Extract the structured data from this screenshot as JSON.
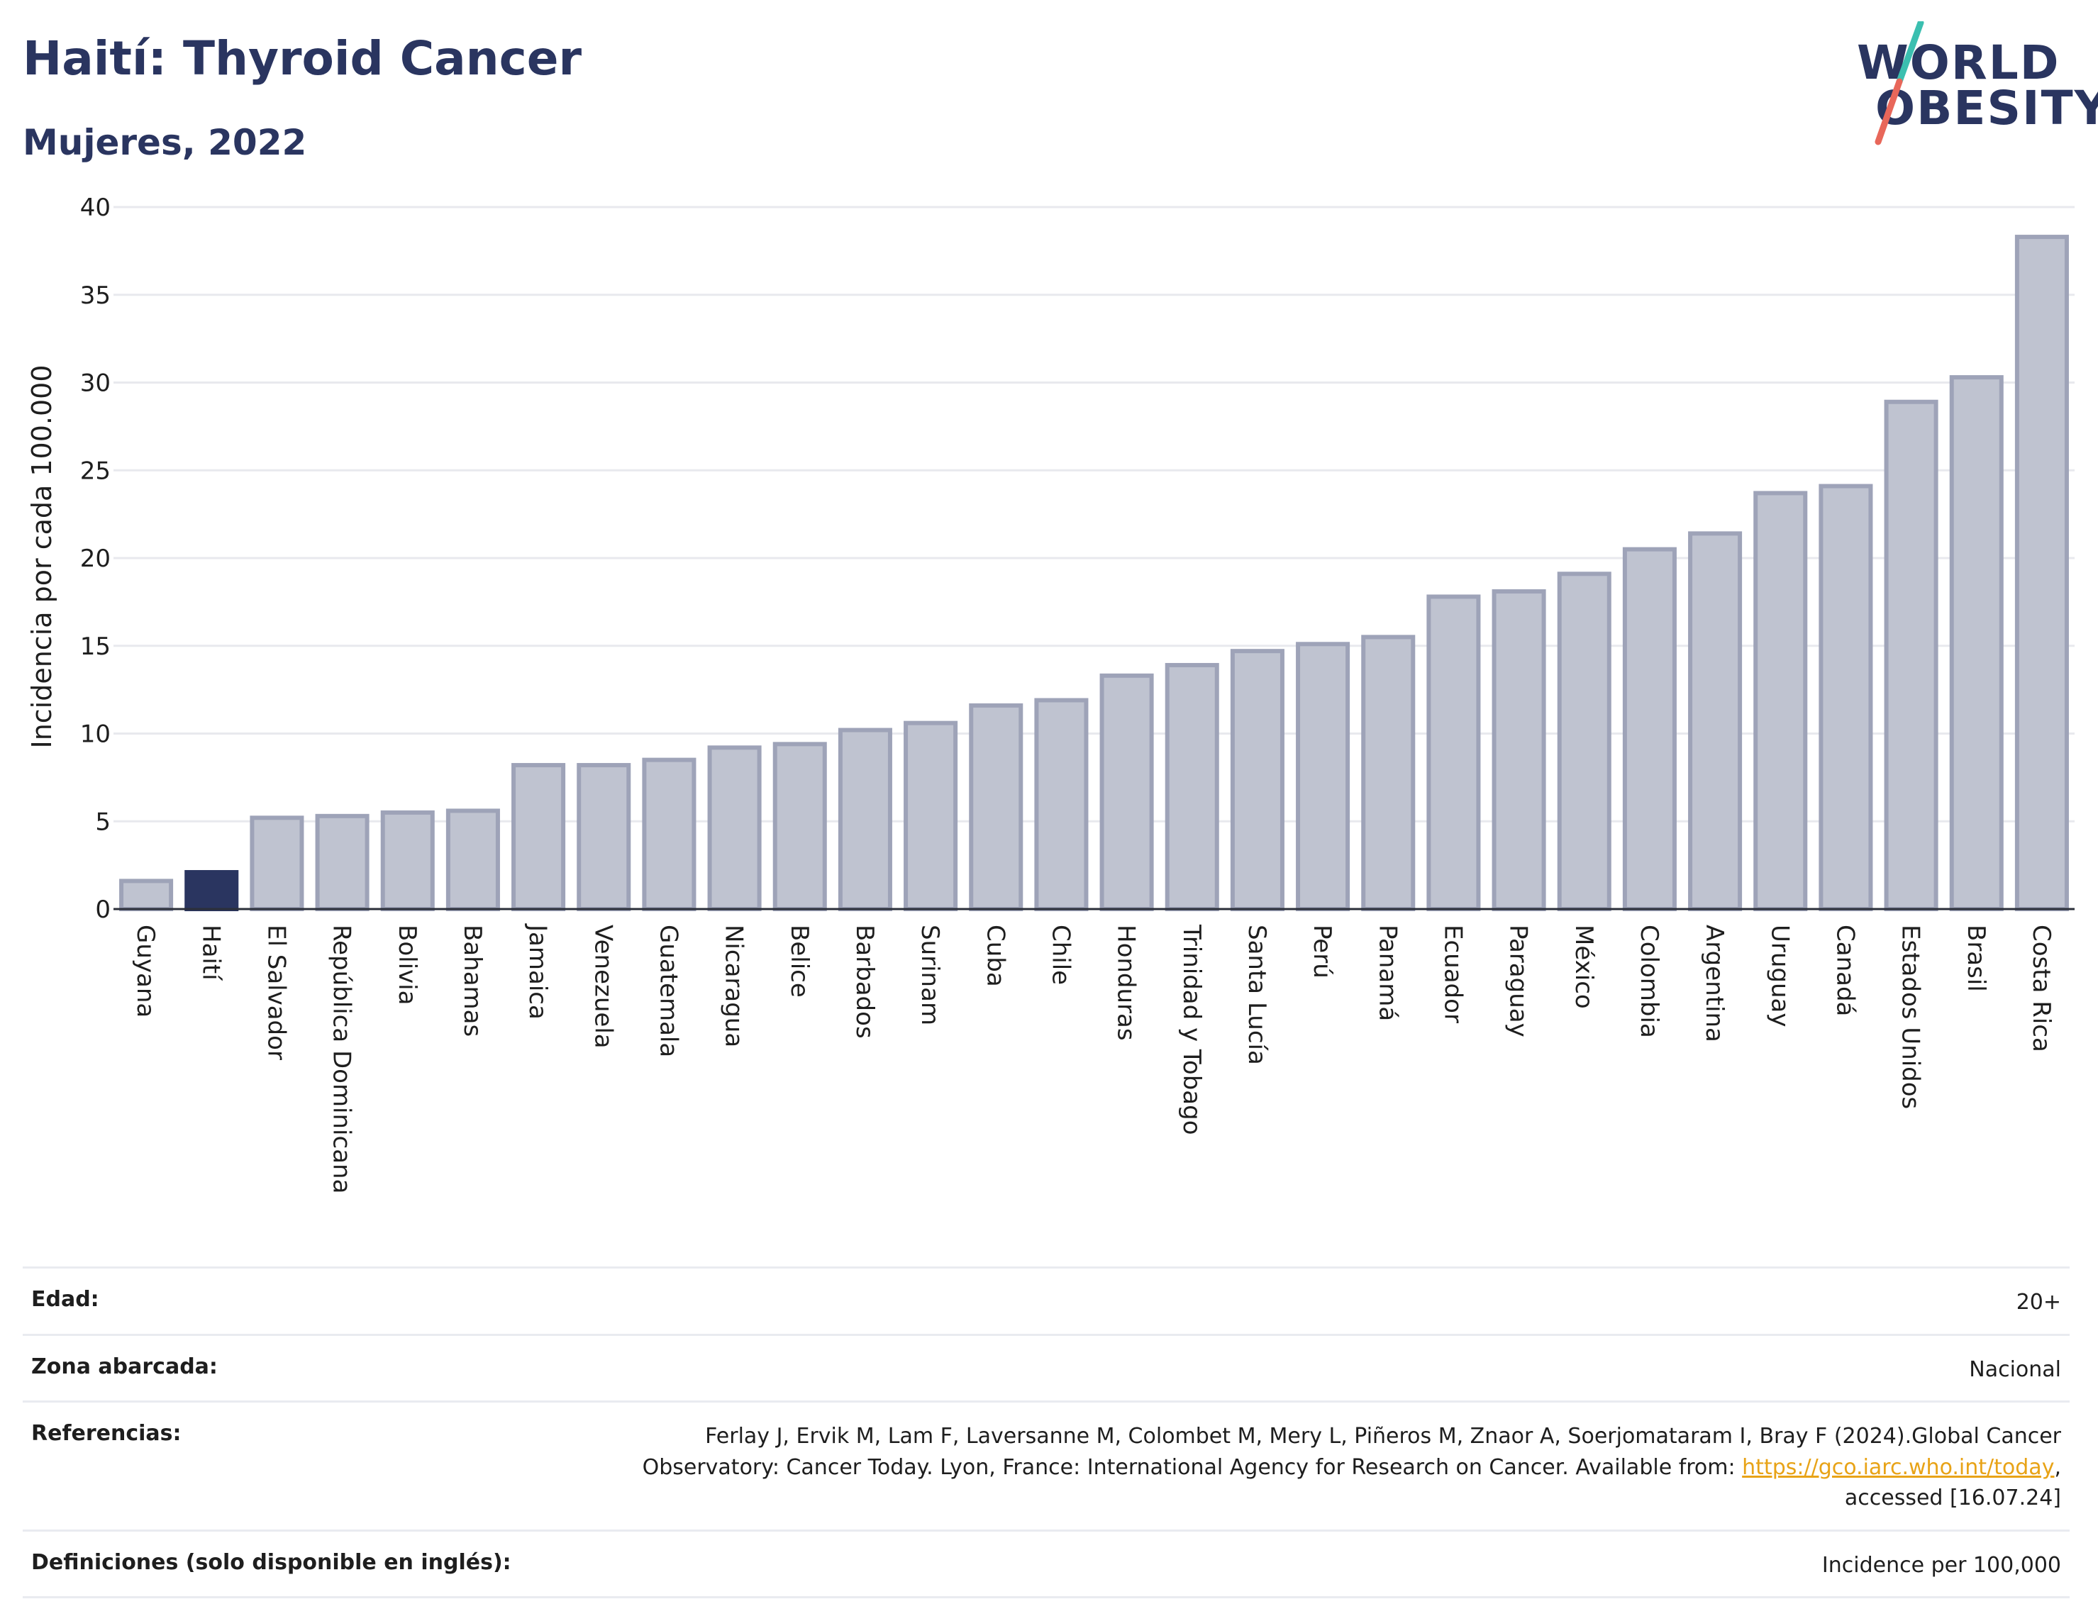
{
  "header": {
    "title": "Haití: Thyroid Cancer",
    "subtitle": "Mujeres, 2022"
  },
  "logo": {
    "line1": "WORLD",
    "line2": "OBESITY",
    "colors": {
      "text": "#2a3560",
      "slash_top": "#3bbfb0",
      "slash_bottom": "#e8675a"
    }
  },
  "chart_data": {
    "type": "bar",
    "ylabel": "Incidencia por cada 100.000",
    "xlabel": "",
    "ylim": [
      0,
      40
    ],
    "yticks": [
      0,
      5,
      10,
      15,
      20,
      25,
      30,
      35,
      40
    ],
    "grid": true,
    "highlight": "Haití",
    "colors": {
      "bar": "#bfc3d0",
      "bar_edge": "#9ea3b8",
      "highlight": "#2a3560",
      "grid": "#e8e9ee"
    },
    "categories": [
      "Guyana",
      "Haití",
      "El Salvador",
      "República Dominicana",
      "Bolivia",
      "Bahamas",
      "Jamaica",
      "Venezuela",
      "Guatemala",
      "Nicaragua",
      "Belice",
      "Barbados",
      "Surinam",
      "Cuba",
      "Chile",
      "Honduras",
      "Trinidad y Tobago",
      "Santa Lucía",
      "Perú",
      "Panamá",
      "Ecuador",
      "Paraguay",
      "México",
      "Colombia",
      "Argentina",
      "Uruguay",
      "Canadá",
      "Estados Unidos",
      "Brasil",
      "Costa Rica"
    ],
    "values": [
      1.6,
      2.1,
      5.2,
      5.3,
      5.5,
      5.6,
      8.2,
      8.2,
      8.5,
      9.2,
      9.4,
      10.2,
      10.6,
      11.6,
      11.9,
      13.3,
      13.9,
      14.7,
      15.1,
      15.5,
      17.8,
      18.1,
      19.1,
      20.5,
      21.4,
      23.7,
      24.1,
      28.9,
      30.3,
      38.3
    ]
  },
  "info": {
    "rows": [
      {
        "key": "Edad:",
        "value": "20+"
      },
      {
        "key": "Zona abarcada:",
        "value": "Nacional"
      },
      {
        "key": "Referencias:",
        "value_part1": "Ferlay J, Ervik M, Lam F, Laversanne M, Colombet M, Mery L, Piñeros M, Znaor A, Soerjomataram I, Bray F (2024).Global Cancer Observatory: Cancer Today. Lyon, France: International Agency for Research on Cancer. Available from: ",
        "link": "https://gco.iarc.who.int/today",
        "value_part2": ", accessed [16.07.24]"
      },
      {
        "key": "Definiciones (solo disponible en inglés):",
        "value": "Incidence per 100,000"
      }
    ]
  }
}
